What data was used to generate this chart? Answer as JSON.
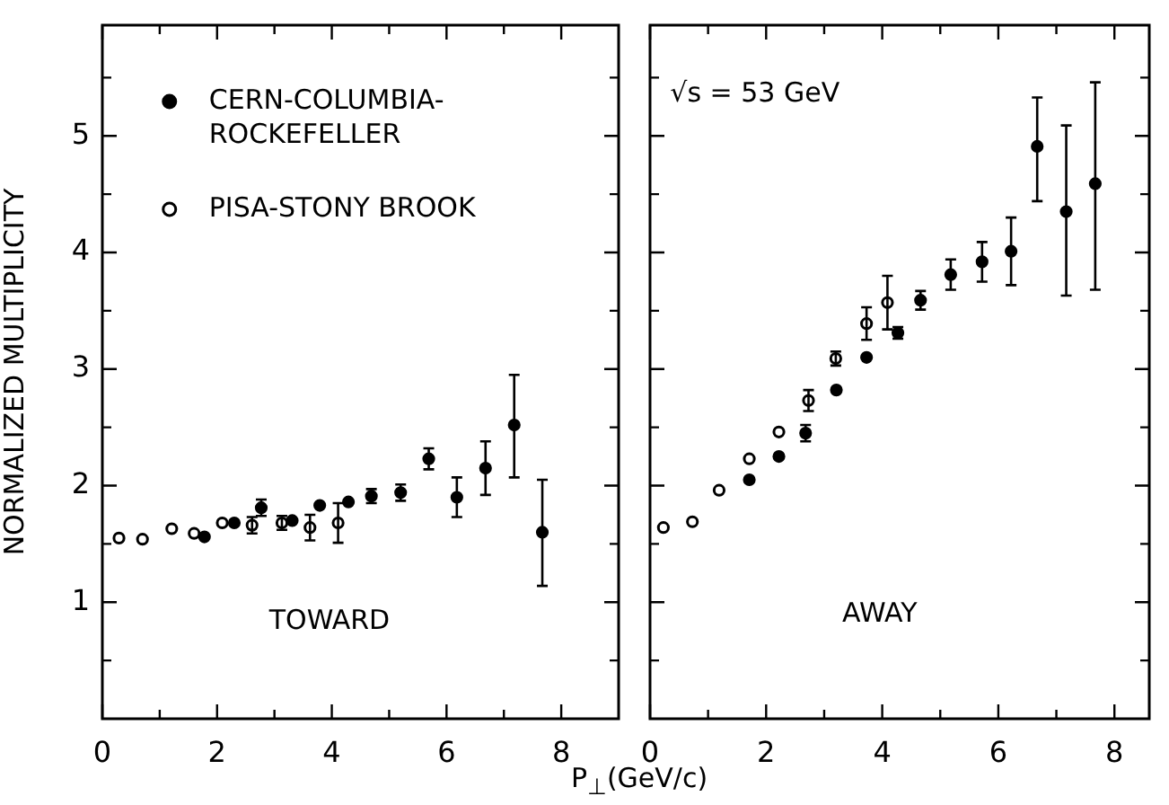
{
  "chart_data": [
    {
      "type": "scatter",
      "xlabel": "P$_{⊥}$(GeV/c)",
      "ylabel": "NORMALIZED MULTIPLICITY",
      "xlim": [
        0,
        9
      ],
      "ylim": [
        0,
        5.95
      ],
      "xticks": [
        0,
        {
          "value": 1,
          "label": null
        },
        2,
        {
          "value": 3,
          "label": null
        },
        4,
        {
          "value": 5,
          "label": null
        },
        6,
        {
          "value": 7,
          "label": null
        },
        8
      ],
      "yticks": [
        {
          "value": 0.5,
          "label": null
        },
        1,
        {
          "value": 1.5,
          "label": null
        },
        2,
        {
          "value": 2.5,
          "label": null
        },
        3,
        {
          "value": 3.5,
          "label": null
        },
        4,
        {
          "value": 4.5,
          "label": null
        },
        5,
        {
          "value": 5.5,
          "label": null
        }
      ],
      "grid": false,
      "legend": "top left",
      "marker": "circle",
      "annotations": [
        "TOWARD"
      ],
      "series": [
        {
          "name": "CERN-COLUMBIA-ROCKEFELLER",
          "color": "#000000",
          "x": [
            1.78,
            2.3,
            2.77,
            3.31,
            3.79,
            4.29,
            4.69,
            5.2,
            5.69,
            6.18,
            6.68,
            7.18,
            7.67
          ],
          "values": [
            1.56,
            1.68,
            1.81,
            1.7,
            1.83,
            1.86,
            1.91,
            1.94,
            2.23,
            1.9,
            2.15,
            2.52,
            1.6
          ],
          "errors": [
            null,
            null,
            0.07,
            null,
            null,
            null,
            0.06,
            0.07,
            0.09,
            0.17,
            0.23,
            [
              2.07,
              2.95
            ],
            [
              1.14,
              2.05
            ]
          ]
        },
        {
          "name": "PISA-STONY BROOK",
          "color": "#000000",
          "x": [
            0.29,
            0.7,
            1.21,
            1.6,
            2.09,
            2.61,
            3.13,
            3.62,
            4.11
          ],
          "values": [
            1.55,
            1.54,
            1.63,
            1.59,
            1.68,
            1.66,
            1.68,
            1.64,
            1.68
          ],
          "errors": [
            null,
            null,
            null,
            null,
            null,
            0.07,
            0.06,
            0.11,
            0.17
          ]
        }
      ]
    },
    {
      "type": "scatter",
      "xlim": [
        0,
        8.6
      ],
      "ylim": [
        0,
        5.95
      ],
      "tick_labels": "x",
      "xticks": [
        0,
        {
          "value": 1,
          "label": null
        },
        2,
        {
          "value": 3,
          "label": null
        },
        4,
        {
          "value": 5,
          "label": null
        },
        6,
        {
          "value": 7,
          "label": null
        },
        8
      ],
      "yticks": [
        {
          "value": 0.5,
          "label": null
        },
        1,
        {
          "value": 1.5,
          "label": null
        },
        2,
        {
          "value": 2.5,
          "label": null
        },
        3,
        {
          "value": 3.5,
          "label": null
        },
        4,
        {
          "value": 4.5,
          "label": null
        },
        5,
        {
          "value": 5.5,
          "label": null
        }
      ],
      "grid": false,
      "marker": "circle",
      "annotations": [
        "√s = 53 GeV",
        "AWAY"
      ],
      "series": [
        {
          "color": "#000000",
          "x": [
            1.71,
            2.22,
            2.68,
            3.21,
            3.73,
            4.27,
            4.66,
            5.18,
            5.72,
            6.22,
            6.67,
            7.17,
            7.67
          ],
          "values": [
            2.05,
            2.25,
            2.45,
            2.82,
            3.1,
            3.31,
            3.59,
            3.81,
            3.92,
            4.01,
            4.91,
            4.35,
            4.59
          ],
          "errors": [
            null,
            null,
            0.07,
            null,
            null,
            0.05,
            0.08,
            0.13,
            0.17,
            0.29,
            [
              4.44,
              5.33
            ],
            [
              3.63,
              5.09
            ],
            [
              3.68,
              5.46
            ]
          ]
        },
        {
          "color": "#000000",
          "x": [
            0.23,
            0.73,
            1.19,
            1.71,
            2.22,
            2.73,
            3.2,
            3.73,
            4.09
          ],
          "values": [
            1.64,
            1.69,
            1.96,
            2.23,
            2.46,
            2.73,
            3.09,
            3.39,
            3.57
          ],
          "errors": [
            null,
            null,
            null,
            null,
            null,
            0.09,
            0.06,
            0.14,
            0.23
          ]
        }
      ]
    }
  ]
}
